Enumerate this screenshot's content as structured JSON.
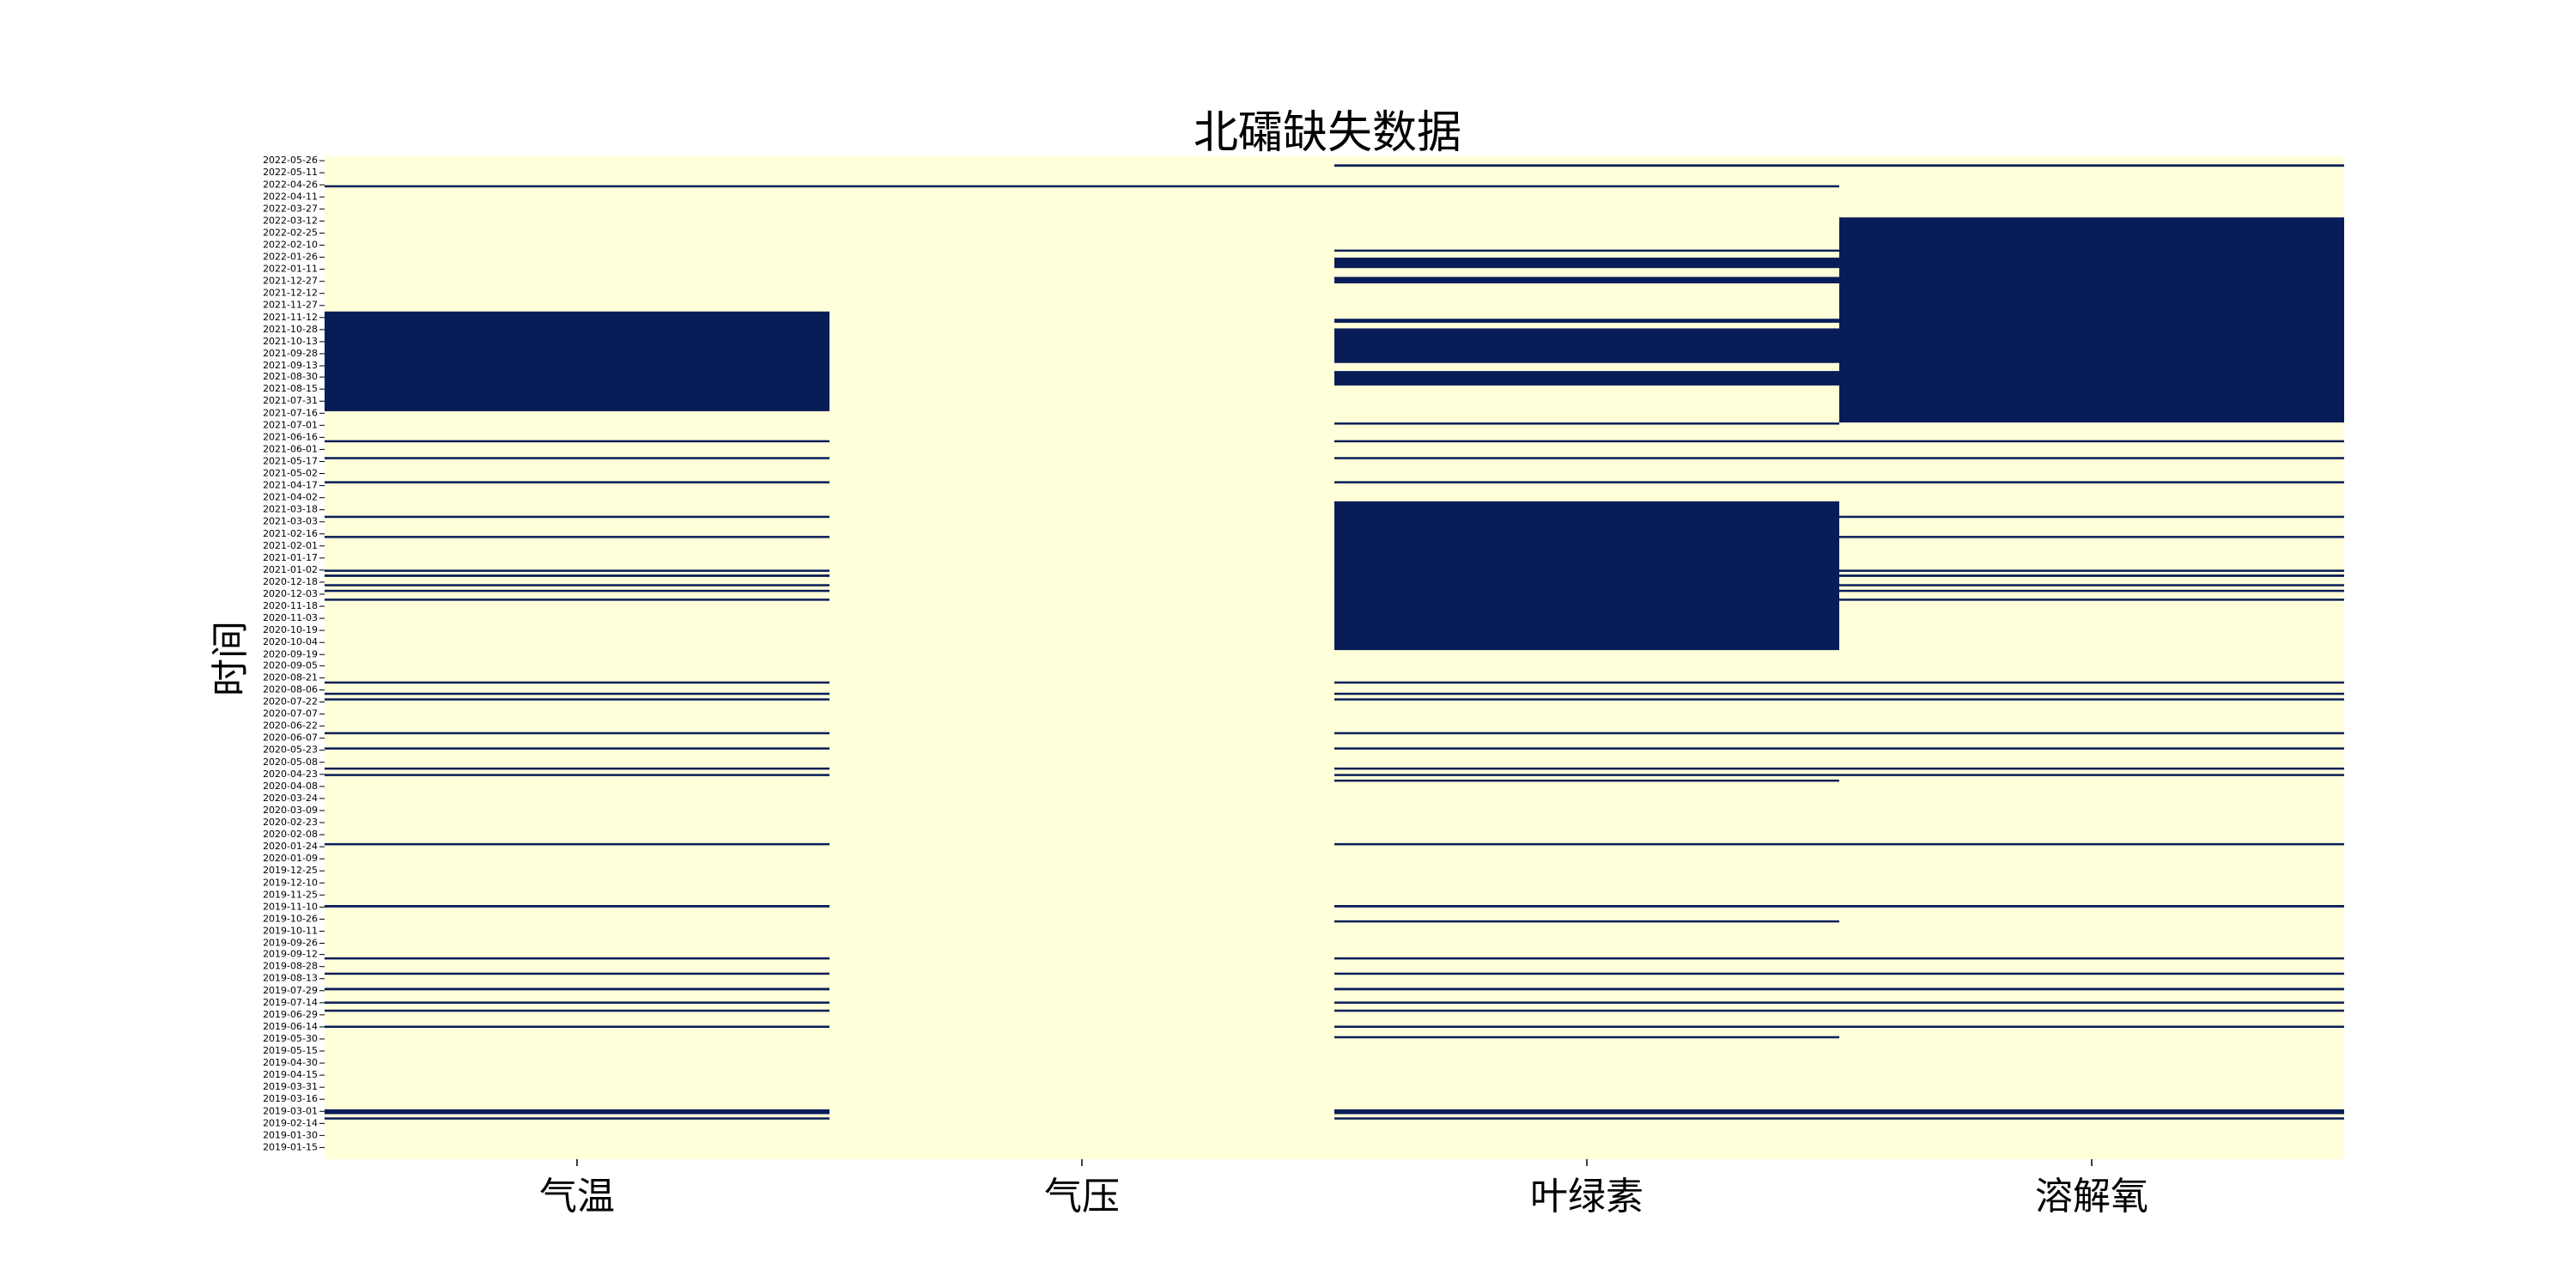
{
  "chart_data": {
    "type": "heatmap",
    "title": "北礵缺失数据",
    "ylabel": "时间",
    "columns": [
      "气温",
      "气压",
      "叶绿素",
      "溶解氧"
    ],
    "y_range": [
      "2019-01-01",
      "2022-05-31"
    ],
    "y_ticks": [
      "2022-05-26",
      "2022-05-11",
      "2022-04-26",
      "2022-04-11",
      "2022-03-27",
      "2022-03-12",
      "2022-02-25",
      "2022-02-10",
      "2022-01-26",
      "2022-01-11",
      "2021-12-27",
      "2021-12-12",
      "2021-11-27",
      "2021-11-12",
      "2021-10-28",
      "2021-10-13",
      "2021-09-28",
      "2021-09-13",
      "2021-08-30",
      "2021-08-15",
      "2021-07-31",
      "2021-07-16",
      "2021-07-01",
      "2021-06-16",
      "2021-06-01",
      "2021-05-17",
      "2021-05-02",
      "2021-04-17",
      "2021-04-02",
      "2021-03-18",
      "2021-03-03",
      "2021-02-16",
      "2021-02-01",
      "2021-01-17",
      "2021-01-02",
      "2020-12-18",
      "2020-12-03",
      "2020-11-18",
      "2020-11-03",
      "2020-10-19",
      "2020-10-04",
      "2020-09-19",
      "2020-09-05",
      "2020-08-21",
      "2020-08-06",
      "2020-07-22",
      "2020-07-07",
      "2020-06-22",
      "2020-06-07",
      "2020-05-23",
      "2020-05-08",
      "2020-04-23",
      "2020-04-08",
      "2020-03-24",
      "2020-03-09",
      "2020-02-23",
      "2020-02-08",
      "2020-01-24",
      "2020-01-09",
      "2019-12-25",
      "2019-12-10",
      "2019-11-25",
      "2019-11-10",
      "2019-10-26",
      "2019-10-11",
      "2019-09-26",
      "2019-09-12",
      "2019-08-28",
      "2019-08-13",
      "2019-07-29",
      "2019-07-14",
      "2019-06-29",
      "2019-06-14",
      "2019-05-30",
      "2019-05-15",
      "2019-04-30",
      "2019-04-15",
      "2019-03-31",
      "2019-03-16",
      "2019-03-01",
      "2019-02-14",
      "2019-01-30",
      "2019-01-15"
    ],
    "value_colors": {
      "present": "#ffffd9",
      "missing": "#081d58"
    },
    "missing_segments": [
      {
        "columns": [
          "气温"
        ],
        "from": "2021-07-19",
        "to": "2021-11-19"
      },
      {
        "columns": [
          "叶绿素",
          "溶解氧"
        ],
        "from": "2022-05-19",
        "to": "2022-05-21"
      },
      {
        "columns": [
          "溶解氧"
        ],
        "from": "2021-07-05",
        "to": "2022-03-16"
      },
      {
        "columns": [
          "叶绿素"
        ],
        "from": "2022-01-13",
        "to": "2022-01-25"
      },
      {
        "columns": [
          "叶绿素"
        ],
        "from": "2021-12-25",
        "to": "2022-01-01"
      },
      {
        "columns": [
          "叶绿素"
        ],
        "from": "2021-11-06",
        "to": "2021-11-10"
      },
      {
        "columns": [
          "叶绿素"
        ],
        "from": "2021-09-17",
        "to": "2021-10-29"
      },
      {
        "columns": [
          "叶绿素"
        ],
        "from": "2021-08-20",
        "to": "2021-09-06"
      },
      {
        "columns": [
          "叶绿素"
        ],
        "from": "2020-09-25",
        "to": "2021-03-28"
      },
      {
        "columns": [
          "叶绿素"
        ],
        "from": "2019-10-23",
        "to": "2019-10-24"
      },
      {
        "columns": [
          "气温",
          "叶绿素",
          "溶解氧"
        ],
        "from": "2021-06-11",
        "to": "2021-06-12"
      },
      {
        "columns": [
          "气温",
          "叶绿素",
          "溶解氧"
        ],
        "from": "2021-05-21",
        "to": "2021-05-22"
      },
      {
        "columns": [
          "气温",
          "叶绿素",
          "溶解氧"
        ],
        "from": "2021-04-21",
        "to": "2021-04-22"
      },
      {
        "columns": [
          "气温",
          "叶绿素",
          "溶解氧"
        ],
        "from": "2021-03-09",
        "to": "2021-03-10"
      },
      {
        "columns": [
          "气温",
          "叶绿素",
          "溶解氧"
        ],
        "from": "2021-02-12",
        "to": "2021-02-13"
      },
      {
        "columns": [
          "气温",
          "叶绿素",
          "溶解氧"
        ],
        "from": "2021-01-01",
        "to": "2021-01-02"
      },
      {
        "columns": [
          "气温",
          "叶绿素",
          "溶解氧"
        ],
        "from": "2020-12-25",
        "to": "2020-12-27"
      },
      {
        "columns": [
          "气温",
          "叶绿素",
          "溶解氧"
        ],
        "from": "2020-12-14",
        "to": "2020-12-15"
      },
      {
        "columns": [
          "气温",
          "叶绿素",
          "溶解氧"
        ],
        "from": "2020-12-07",
        "to": "2020-12-08"
      },
      {
        "columns": [
          "气温",
          "叶绿素",
          "溶解氧"
        ],
        "from": "2020-11-26",
        "to": "2020-11-27"
      },
      {
        "columns": [
          "气温",
          "叶绿素",
          "溶解氧"
        ],
        "from": "2020-08-15",
        "to": "2020-08-16"
      },
      {
        "columns": [
          "气温",
          "叶绿素",
          "溶解氧"
        ],
        "from": "2020-08-01",
        "to": "2020-08-02"
      },
      {
        "columns": [
          "气温",
          "叶绿素",
          "溶解氧"
        ],
        "from": "2020-07-25",
        "to": "2020-07-26"
      },
      {
        "columns": [
          "气温",
          "叶绿素",
          "溶解氧"
        ],
        "from": "2020-06-13",
        "to": "2020-06-14"
      },
      {
        "columns": [
          "气温",
          "叶绿素",
          "溶解氧"
        ],
        "from": "2020-05-25",
        "to": "2020-05-26"
      },
      {
        "columns": [
          "气温",
          "叶绿素",
          "溶解氧"
        ],
        "from": "2020-04-30",
        "to": "2020-05-01"
      },
      {
        "columns": [
          "气温",
          "叶绿素",
          "溶解氧"
        ],
        "from": "2020-04-22",
        "to": "2020-04-23"
      },
      {
        "columns": [
          "气温",
          "叶绿素",
          "溶解氧"
        ],
        "from": "2020-01-27",
        "to": "2020-01-28"
      },
      {
        "columns": [
          "气温",
          "叶绿素",
          "溶解氧"
        ],
        "from": "2019-11-10",
        "to": "2019-11-12"
      },
      {
        "columns": [
          "气温",
          "叶绿素",
          "溶解氧"
        ],
        "from": "2019-09-07",
        "to": "2019-09-08"
      },
      {
        "columns": [
          "气温",
          "叶绿素",
          "溶解氧"
        ],
        "from": "2019-08-19",
        "to": "2019-08-20"
      },
      {
        "columns": [
          "气温",
          "叶绿素",
          "溶解氧"
        ],
        "from": "2019-07-30",
        "to": "2019-08-01"
      },
      {
        "columns": [
          "气温",
          "叶绿素",
          "溶解氧"
        ],
        "from": "2019-07-14",
        "to": "2019-07-15"
      },
      {
        "columns": [
          "气温",
          "叶绿素",
          "溶解氧"
        ],
        "from": "2019-07-04",
        "to": "2019-07-05"
      },
      {
        "columns": [
          "气温",
          "叶绿素",
          "溶解氧"
        ],
        "from": "2019-06-14",
        "to": "2019-06-15"
      },
      {
        "columns": [
          "气温",
          "叶绿素",
          "溶解氧"
        ],
        "from": "2019-02-26",
        "to": "2019-03-03"
      },
      {
        "columns": [
          "气温",
          "叶绿素",
          "溶解氧"
        ],
        "from": "2019-02-20",
        "to": "2019-02-21"
      },
      {
        "columns": [
          "气温",
          "气压",
          "叶绿素"
        ],
        "from": "2022-04-24",
        "to": "2022-04-25"
      },
      {
        "columns": [
          "叶绿素"
        ],
        "from": "2022-02-03",
        "to": "2022-02-04"
      },
      {
        "columns": [
          "叶绿素"
        ],
        "from": "2021-07-03",
        "to": "2021-07-04"
      },
      {
        "columns": [
          "叶绿素"
        ],
        "from": "2020-04-15",
        "to": "2020-04-16"
      },
      {
        "columns": [
          "叶绿素"
        ],
        "from": "2019-06-01",
        "to": "2019-06-02"
      }
    ]
  }
}
